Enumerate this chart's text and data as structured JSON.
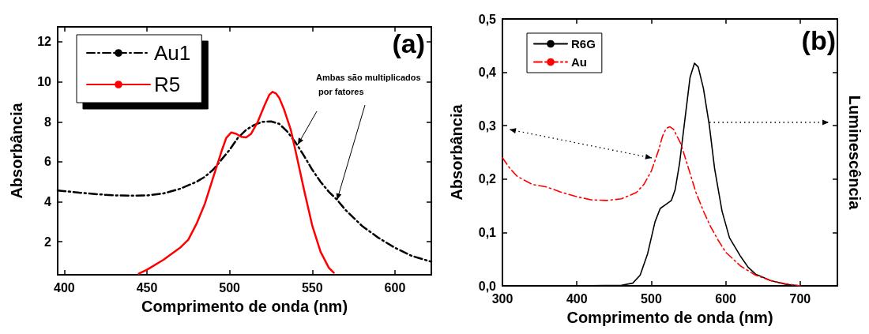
{
  "chart_data": [
    {
      "type": "line",
      "xlabel": "Comprimento de onda (nm)",
      "ylabel": "Absorbância",
      "annotations": [
        "(a)",
        {
          "text": "Ambas são multiplicados por fatores",
          "x": 565,
          "y": 4.1
        }
      ],
      "series": [
        {
          "name": "Au1",
          "color": "#000000",
          "line_style": "dashed",
          "x": [
            396,
            410,
            420,
            430,
            440,
            450,
            460,
            470,
            480,
            485,
            490,
            495,
            500,
            505,
            510,
            515,
            520,
            525,
            530,
            535,
            540,
            545,
            550,
            555,
            560,
            565,
            570,
            575,
            580,
            590,
            600,
            610,
            622
          ],
          "values": [
            4.57,
            4.45,
            4.38,
            4.32,
            4.31,
            4.32,
            4.42,
            4.65,
            5.0,
            5.25,
            5.6,
            6.1,
            6.6,
            7.2,
            7.6,
            7.85,
            8.0,
            8.02,
            7.9,
            7.5,
            6.95,
            6.3,
            5.6,
            5.0,
            4.5,
            4.1,
            3.6,
            3.2,
            2.8,
            2.2,
            1.7,
            1.3,
            1.0
          ]
        },
        {
          "name": "R5",
          "color": "#ff0000",
          "line_style": "solid",
          "x": [
            445,
            450,
            460,
            470,
            475,
            480,
            485,
            490,
            495,
            498,
            501,
            504,
            507,
            510,
            513,
            517,
            521,
            524,
            526,
            528,
            530,
            533,
            537,
            540,
            545,
            550,
            555,
            560,
            563
          ],
          "values": [
            0.4,
            0.6,
            1.1,
            1.7,
            2.1,
            2.9,
            3.9,
            5.2,
            6.5,
            7.2,
            7.47,
            7.4,
            7.25,
            7.22,
            7.4,
            8.0,
            8.8,
            9.35,
            9.5,
            9.42,
            9.2,
            8.6,
            7.6,
            6.5,
            4.6,
            2.8,
            1.5,
            0.7,
            0.45
          ]
        }
      ],
      "xlim": [
        396,
        622
      ],
      "xticks": [
        400,
        450,
        500,
        550,
        600
      ],
      "ylim": [
        0.35,
        12.75
      ],
      "yticks": [
        2,
        4,
        6,
        8,
        10,
        12
      ],
      "grid": false,
      "legend": "top left",
      "marker": "none"
    },
    {
      "type": "line",
      "xlabel": "Comprimento de onda (nm)",
      "ylabel": "Absorbância",
      "y2label": "Luminescência",
      "annotations": [
        "(b)"
      ],
      "series": [
        {
          "name": "R6G",
          "color": "#000000",
          "line_style": "solid",
          "x": [
            300,
            400,
            460,
            475,
            485,
            495,
            505,
            512,
            520,
            527,
            532,
            538,
            545,
            552,
            558,
            563,
            570,
            578,
            585,
            595,
            605,
            620,
            630,
            640,
            660,
            680,
            700
          ],
          "values": [
            0,
            0,
            0.001,
            0.005,
            0.02,
            0.06,
            0.12,
            0.145,
            0.153,
            0.16,
            0.18,
            0.23,
            0.31,
            0.39,
            0.417,
            0.41,
            0.37,
            0.3,
            0.22,
            0.14,
            0.09,
            0.055,
            0.035,
            0.022,
            0.01,
            0.003,
            0
          ]
        },
        {
          "name": "Au",
          "color": "#ff0000",
          "line_style": "dashed",
          "x": [
            300,
            310,
            320,
            340,
            360,
            380,
            400,
            420,
            440,
            460,
            480,
            490,
            500,
            510,
            515,
            520,
            525,
            530,
            540,
            550,
            560,
            570,
            580,
            590,
            600,
            620,
            640,
            660,
            680,
            700
          ],
          "values": [
            0.24,
            0.22,
            0.205,
            0.19,
            0.185,
            0.175,
            0.167,
            0.161,
            0.16,
            0.163,
            0.175,
            0.19,
            0.215,
            0.255,
            0.28,
            0.295,
            0.298,
            0.293,
            0.265,
            0.22,
            0.175,
            0.14,
            0.11,
            0.085,
            0.063,
            0.037,
            0.02,
            0.01,
            0.004,
            0
          ]
        }
      ],
      "xlim": [
        300,
        750
      ],
      "xticks": [
        300,
        400,
        500,
        600,
        700
      ],
      "ylim": [
        0,
        0.5
      ],
      "yticks": [
        {
          "value": 0,
          "label": "0,0"
        },
        {
          "value": 0.1,
          "label": "0,1"
        },
        {
          "value": 0.2,
          "label": "0,2"
        },
        {
          "value": 0.3,
          "label": "0,3"
        },
        {
          "value": 0.4,
          "label": "0,4"
        },
        {
          "value": 0.5,
          "label": "0,5"
        }
      ],
      "grid": false,
      "legend": "top left",
      "marker": "none"
    }
  ]
}
